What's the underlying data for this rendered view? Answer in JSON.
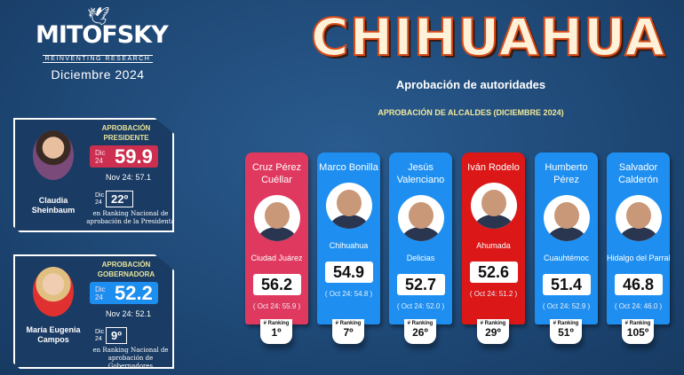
{
  "logo": {
    "brand": "MITOFSKY",
    "tagline": "REINVENTING RESEARCH"
  },
  "date": "Diciembre  2024",
  "title": "CHIHUAHUA",
  "subtitle": "Aprobación de autoridades",
  "section_title": "APROBACIÓN DE ALCALDES (DICIEMBRE 2024)",
  "president": {
    "title": "APROBACIÓN PRESIDENTE",
    "name": "Claudia Sheinbaum",
    "dic": "Dic 24",
    "score": "59.9",
    "prev": "Nov 24:  57.1",
    "rank_dic": "Dic 24",
    "rank": "22º",
    "rank_note": "en Ranking Nacional de aprobación de la Presidenta",
    "color": "#cc2f4f"
  },
  "governor": {
    "title": "APROBACIÓN GOBERNADORA",
    "name": "María Eugenia Campos",
    "dic": "Dic 24",
    "score": "52.2",
    "prev": "Nov 24:  52.1",
    "rank_dic": "Dic 24",
    "rank": "9º",
    "rank_note": "en Ranking Nacional de aprobación de Gobernadores",
    "color": "#1c8ef0"
  },
  "ranking_label": "# Ranking",
  "mayors": [
    {
      "name": "Cruz Pérez Cuéllar",
      "city": "Ciudad Juárez",
      "score": "56.2",
      "prev": "( Oct 24: 55.9 )",
      "rank": "1º",
      "color": "#e0395f"
    },
    {
      "name": "Marco Bonilla",
      "city": "Chihuahua",
      "score": "54.9",
      "prev": "( Oct 24: 54.8 )",
      "rank": "7º",
      "color": "#1e8ff0"
    },
    {
      "name": "Jesús Valenciano",
      "city": "Delicias",
      "score": "52.7",
      "prev": "( Oct 24: 52.0 )",
      "rank": "26º",
      "color": "#1e8ff0"
    },
    {
      "name": "Iván Rodelo",
      "city": "Ahumada",
      "score": "52.6",
      "prev": "( Oct 24: 51.2 )",
      "rank": "29º",
      "color": "#dc1717"
    },
    {
      "name": "Humberto Pérez",
      "city": "Cuauhtémoc",
      "score": "51.4",
      "prev": "( Oct 24: 52.9 )",
      "rank": "51º",
      "color": "#1e8ff0"
    },
    {
      "name": "Salvador Calderón",
      "city": "Hidalgo del Parral",
      "score": "46.8",
      "prev": "( Oct 24: 46.0 )",
      "rank": "105º",
      "color": "#1e8ff0"
    }
  ]
}
